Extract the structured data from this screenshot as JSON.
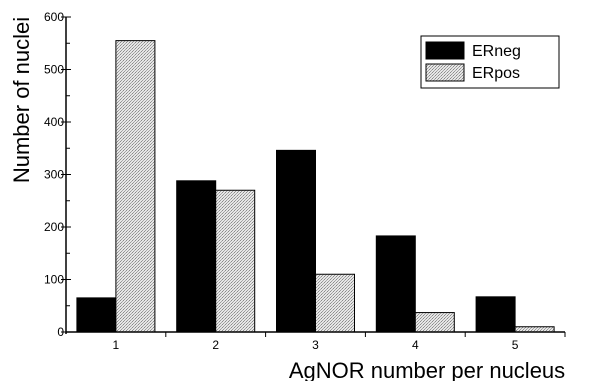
{
  "chart_data": {
    "type": "bar",
    "title": "",
    "xlabel": "AgNOR number per nucleus",
    "ylabel": "Number of nuclei",
    "categories": [
      "1",
      "2",
      "3",
      "4",
      "5"
    ],
    "series": [
      {
        "name": "ERneg",
        "values": [
          65,
          288,
          346,
          183,
          67
        ],
        "color": "#000000",
        "fill": "solid"
      },
      {
        "name": "ERpos",
        "values": [
          555,
          270,
          110,
          37,
          10
        ],
        "color": "#d0d0d0",
        "fill": "stipple"
      }
    ],
    "ylim": [
      0,
      600
    ],
    "yticks": [
      "0",
      "100",
      "200",
      "300",
      "400",
      "500",
      "600"
    ],
    "grid": false,
    "legend_position": "top-right"
  }
}
